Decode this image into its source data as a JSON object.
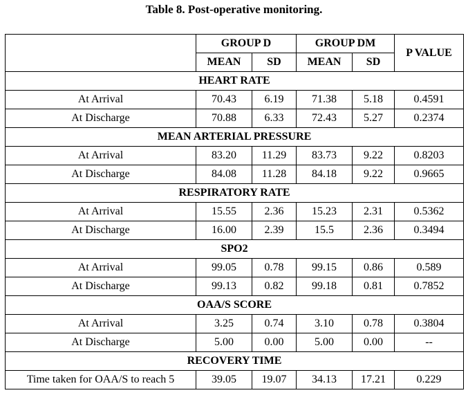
{
  "caption": "Table 8. Post-operative monitoring.",
  "headers": {
    "group_d": "GROUP D",
    "group_dm": "GROUP DM",
    "p_value": "P VALUE",
    "mean": "MEAN",
    "sd": "SD"
  },
  "sections": [
    {
      "title": "HEART RATE",
      "rows": [
        {
          "label": "At Arrival",
          "d_mean": "70.43",
          "d_sd": "6.19",
          "dm_mean": "71.38",
          "dm_sd": "5.18",
          "p": "0.4591"
        },
        {
          "label": "At Discharge",
          "d_mean": "70.88",
          "d_sd": "6.33",
          "dm_mean": "72.43",
          "dm_sd": "5.27",
          "p": "0.2374"
        }
      ]
    },
    {
      "title": "MEAN ARTERIAL PRESSURE",
      "rows": [
        {
          "label": "At Arrival",
          "d_mean": "83.20",
          "d_sd": "11.29",
          "dm_mean": "83.73",
          "dm_sd": "9.22",
          "p": "0.8203"
        },
        {
          "label": "At Discharge",
          "d_mean": "84.08",
          "d_sd": "11.28",
          "dm_mean": "84.18",
          "dm_sd": "9.22",
          "p": "0.9665"
        }
      ]
    },
    {
      "title": "RESPIRATORY RATE",
      "rows": [
        {
          "label": "At Arrival",
          "d_mean": "15.55",
          "d_sd": "2.36",
          "dm_mean": "15.23",
          "dm_sd": "2.31",
          "p": "0.5362"
        },
        {
          "label": "At Discharge",
          "d_mean": "16.00",
          "d_sd": "2.39",
          "dm_mean": "15.5",
          "dm_sd": "2.36",
          "p": "0.3494"
        }
      ]
    },
    {
      "title": "SPO2",
      "rows": [
        {
          "label": "At Arrival",
          "d_mean": "99.05",
          "d_sd": "0.78",
          "dm_mean": "99.15",
          "dm_sd": "0.86",
          "p": "0.589"
        },
        {
          "label": "At Discharge",
          "d_mean": "99.13",
          "d_sd": "0.82",
          "dm_mean": "99.18",
          "dm_sd": "0.81",
          "p": "0.7852"
        }
      ]
    },
    {
      "title": "OAA/S SCORE",
      "rows": [
        {
          "label": "At Arrival",
          "d_mean": "3.25",
          "d_sd": "0.74",
          "dm_mean": "3.10",
          "dm_sd": "0.78",
          "p": "0.3804"
        },
        {
          "label": "At Discharge",
          "d_mean": "5.00",
          "d_sd": "0.00",
          "dm_mean": "5.00",
          "dm_sd": "0.00",
          "p": "--"
        }
      ]
    },
    {
      "title": "RECOVERY TIME",
      "rows": [
        {
          "label": "Time taken for OAA/S to reach 5",
          "d_mean": "39.05",
          "d_sd": "19.07",
          "dm_mean": "34.13",
          "dm_sd": "17.21",
          "p": "0.229"
        }
      ]
    }
  ]
}
